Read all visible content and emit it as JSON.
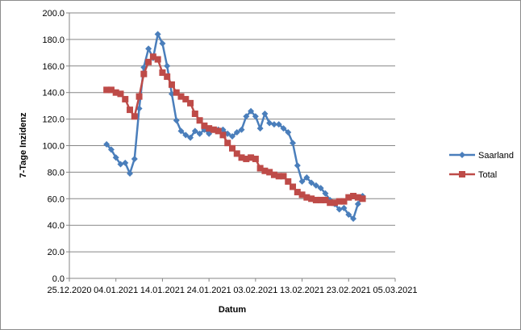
{
  "chart_data": {
    "type": "line",
    "xlabel": "Datum",
    "ylabel": "7-Tage Inzidenz",
    "ylim": [
      0,
      200
    ],
    "y_ticks": [
      "0.0",
      "20.0",
      "40.0",
      "60.0",
      "80.0",
      "100.0",
      "120.0",
      "140.0",
      "160.0",
      "180.0",
      "200.0"
    ],
    "xlim": [
      "2020-12-25",
      "2021-03-05"
    ],
    "x_ticks": [
      "25.12.2020",
      "04.01.2021",
      "14.01.2021",
      "24.01.2021",
      "03.02.2021",
      "13.02.2021",
      "23.02.2021",
      "05.03.2021"
    ],
    "grid": "horizontal",
    "legend_position": "right",
    "series": [
      {
        "name": "Saarland",
        "color": "#4a7ebb",
        "marker": "diamond",
        "points": [
          [
            "2021-01-02",
            101
          ],
          [
            "2021-01-03",
            97
          ],
          [
            "2021-01-04",
            91
          ],
          [
            "2021-01-05",
            86
          ],
          [
            "2021-01-06",
            87
          ],
          [
            "2021-01-07",
            79
          ],
          [
            "2021-01-08",
            90
          ],
          [
            "2021-01-09",
            128
          ],
          [
            "2021-01-10",
            159
          ],
          [
            "2021-01-11",
            173
          ],
          [
            "2021-01-12",
            166
          ],
          [
            "2021-01-13",
            184
          ],
          [
            "2021-01-14",
            177
          ],
          [
            "2021-01-15",
            160
          ],
          [
            "2021-01-16",
            139
          ],
          [
            "2021-01-17",
            119
          ],
          [
            "2021-01-18",
            111
          ],
          [
            "2021-01-19",
            108
          ],
          [
            "2021-01-20",
            106
          ],
          [
            "2021-01-21",
            111
          ],
          [
            "2021-01-22",
            109
          ],
          [
            "2021-01-23",
            112
          ],
          [
            "2021-01-24",
            109
          ],
          [
            "2021-01-25",
            112
          ],
          [
            "2021-01-26",
            112
          ],
          [
            "2021-01-27",
            112
          ],
          [
            "2021-01-28",
            109
          ],
          [
            "2021-01-29",
            107
          ],
          [
            "2021-01-30",
            110
          ],
          [
            "2021-01-31",
            112
          ],
          [
            "2021-02-01",
            122
          ],
          [
            "2021-02-02",
            126
          ],
          [
            "2021-02-03",
            122
          ],
          [
            "2021-02-04",
            113
          ],
          [
            "2021-02-05",
            124
          ],
          [
            "2021-02-06",
            117
          ],
          [
            "2021-02-07",
            116
          ],
          [
            "2021-02-08",
            116
          ],
          [
            "2021-02-09",
            113
          ],
          [
            "2021-02-10",
            110
          ],
          [
            "2021-02-11",
            102
          ],
          [
            "2021-02-12",
            85
          ],
          [
            "2021-02-13",
            73
          ],
          [
            "2021-02-14",
            76
          ],
          [
            "2021-02-15",
            72
          ],
          [
            "2021-02-16",
            70
          ],
          [
            "2021-02-17",
            68
          ],
          [
            "2021-02-18",
            64
          ],
          [
            "2021-02-19",
            59
          ],
          [
            "2021-02-20",
            56
          ],
          [
            "2021-02-21",
            52
          ],
          [
            "2021-02-22",
            53
          ],
          [
            "2021-02-23",
            48
          ],
          [
            "2021-02-24",
            45
          ],
          [
            "2021-02-25",
            56
          ],
          [
            "2021-02-26",
            62
          ]
        ]
      },
      {
        "name": "Total",
        "color": "#be4b48",
        "marker": "square",
        "points": [
          [
            "2021-01-02",
            142
          ],
          [
            "2021-01-03",
            142
          ],
          [
            "2021-01-04",
            140
          ],
          [
            "2021-01-05",
            139
          ],
          [
            "2021-01-06",
            135
          ],
          [
            "2021-01-07",
            127
          ],
          [
            "2021-01-08",
            122
          ],
          [
            "2021-01-09",
            137
          ],
          [
            "2021-01-10",
            154
          ],
          [
            "2021-01-11",
            163
          ],
          [
            "2021-01-12",
            167
          ],
          [
            "2021-01-13",
            165
          ],
          [
            "2021-01-14",
            155
          ],
          [
            "2021-01-15",
            152
          ],
          [
            "2021-01-16",
            146
          ],
          [
            "2021-01-17",
            140
          ],
          [
            "2021-01-18",
            137
          ],
          [
            "2021-01-19",
            135
          ],
          [
            "2021-01-20",
            132
          ],
          [
            "2021-01-21",
            124
          ],
          [
            "2021-01-22",
            119
          ],
          [
            "2021-01-23",
            115
          ],
          [
            "2021-01-24",
            113
          ],
          [
            "2021-01-25",
            112
          ],
          [
            "2021-01-26",
            111
          ],
          [
            "2021-01-27",
            108
          ],
          [
            "2021-01-28",
            102
          ],
          [
            "2021-01-29",
            98
          ],
          [
            "2021-01-30",
            94
          ],
          [
            "2021-01-31",
            91
          ],
          [
            "2021-02-01",
            90
          ],
          [
            "2021-02-02",
            91
          ],
          [
            "2021-02-03",
            90
          ],
          [
            "2021-02-04",
            83
          ],
          [
            "2021-02-05",
            81
          ],
          [
            "2021-02-06",
            80
          ],
          [
            "2021-02-07",
            78
          ],
          [
            "2021-02-08",
            77
          ],
          [
            "2021-02-09",
            77
          ],
          [
            "2021-02-10",
            73
          ],
          [
            "2021-02-11",
            69
          ],
          [
            "2021-02-12",
            65
          ],
          [
            "2021-02-13",
            63
          ],
          [
            "2021-02-14",
            61
          ],
          [
            "2021-02-15",
            60
          ],
          [
            "2021-02-16",
            59
          ],
          [
            "2021-02-17",
            59
          ],
          [
            "2021-02-18",
            59
          ],
          [
            "2021-02-19",
            57
          ],
          [
            "2021-02-20",
            57
          ],
          [
            "2021-02-21",
            58
          ],
          [
            "2021-02-22",
            58
          ],
          [
            "2021-02-23",
            61
          ],
          [
            "2021-02-24",
            62
          ],
          [
            "2021-02-25",
            61
          ],
          [
            "2021-02-26",
            60
          ]
        ]
      }
    ]
  }
}
